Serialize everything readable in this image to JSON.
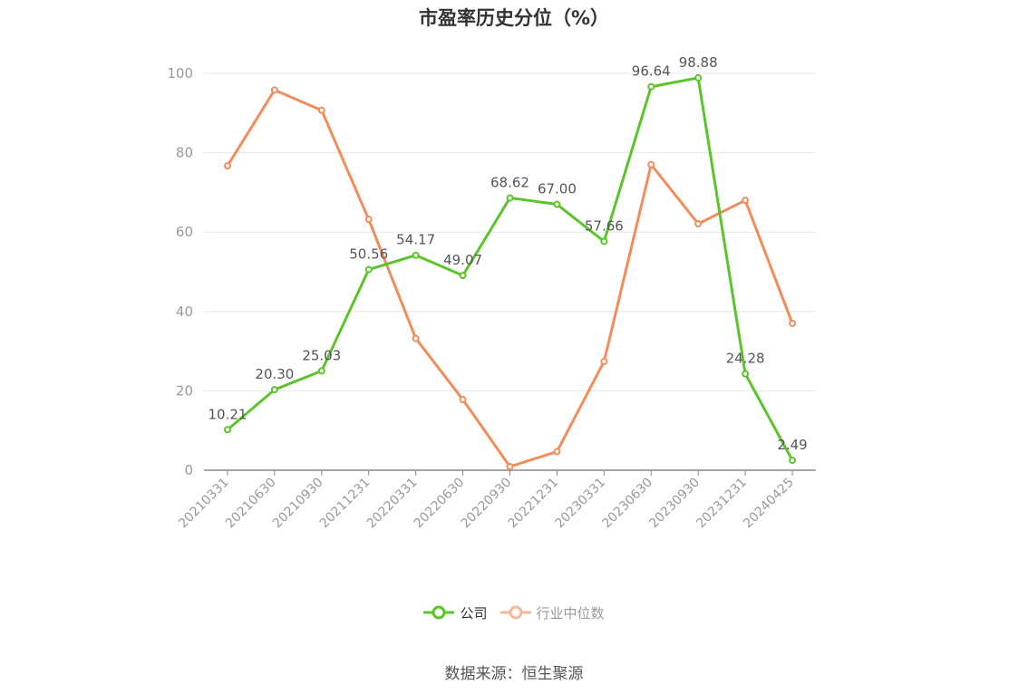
{
  "chart_data": {
    "type": "line",
    "title": "市盈率历史分位（%）",
    "categories": [
      "20210331",
      "20210630",
      "20210930",
      "20211231",
      "20220331",
      "20220630",
      "20220930",
      "20221231",
      "20230331",
      "20230630",
      "20230930",
      "20231231",
      "20240425"
    ],
    "series": [
      {
        "name": "公司",
        "color": "#5ac42a",
        "labeled": true,
        "values": [
          10.21,
          20.3,
          25.03,
          50.56,
          54.17,
          49.07,
          68.62,
          67.0,
          57.66,
          96.64,
          98.88,
          24.28,
          2.49
        ]
      },
      {
        "name": "行业中位数",
        "color": "#f28c5a",
        "legend_color": "#f7b89a",
        "labeled": false,
        "values": [
          76.7,
          95.8,
          90.7,
          63.2,
          33.2,
          17.8,
          0.9,
          4.7,
          27.4,
          77.0,
          62.1,
          68.0,
          37.0
        ]
      }
    ],
    "yticks": [
      "0",
      "20",
      "40",
      "60",
      "80",
      "100"
    ],
    "ylim": [
      0,
      100
    ],
    "grid": true,
    "legend": "bottom-center"
  },
  "source": "数据来源：恒生聚源"
}
